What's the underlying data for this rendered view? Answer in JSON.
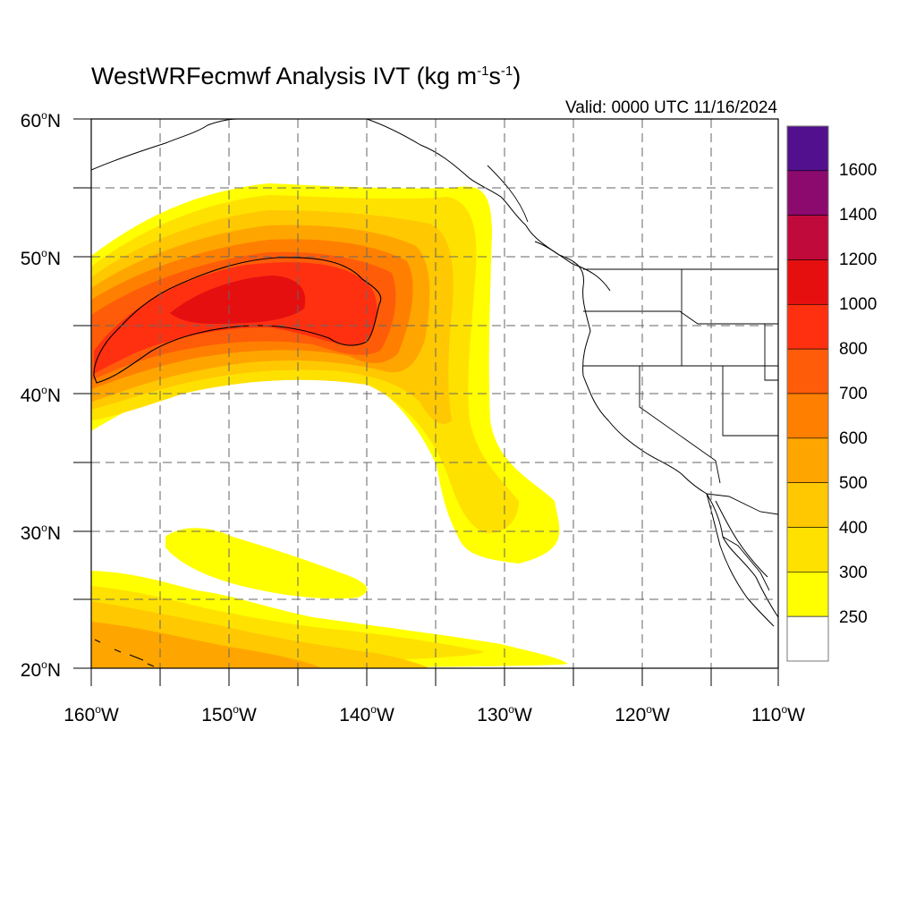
{
  "title": {
    "text": "WestWRFecmwf Analysis IVT (kg m",
    "unit_exp1": "-1",
    "unit_mid": "s",
    "unit_exp2": "-1",
    "close": ")"
  },
  "valid_time": "Valid: 0000 UTC 11/16/2024",
  "lat_axis": [
    {
      "value": "60",
      "suffix": "N"
    },
    {
      "value": "50",
      "suffix": "N"
    },
    {
      "value": "40",
      "suffix": "N"
    },
    {
      "value": "30",
      "suffix": "N"
    },
    {
      "value": "20",
      "suffix": "N"
    }
  ],
  "lon_axis": [
    {
      "value": "160",
      "suffix": "W"
    },
    {
      "value": "150",
      "suffix": "W"
    },
    {
      "value": "140",
      "suffix": "W"
    },
    {
      "value": "130",
      "suffix": "W"
    },
    {
      "value": "120",
      "suffix": "W"
    },
    {
      "value": "110",
      "suffix": "W"
    }
  ],
  "degree_symbol": "o",
  "colorbar": {
    "labels": [
      "1600",
      "1400",
      "1200",
      "1000",
      "800",
      "700",
      "600",
      "500",
      "400",
      "300",
      "250"
    ],
    "colors_top_to_bottom": [
      "#52108e",
      "#8c0a6e",
      "#c00a3c",
      "#e60f10",
      "#ff3010",
      "#ff5c0a",
      "#ff8000",
      "#ffa500",
      "#ffc800",
      "#ffe100",
      "#ffff00",
      "#ffffff"
    ]
  },
  "ivt_colors": {
    "c250": "#ffff00",
    "c300": "#ffe100",
    "c400": "#ffc800",
    "c500": "#ffa500",
    "c600": "#ff8000",
    "c700": "#ff5c0a",
    "c800": "#ff3010",
    "c1000": "#e60f10"
  }
}
